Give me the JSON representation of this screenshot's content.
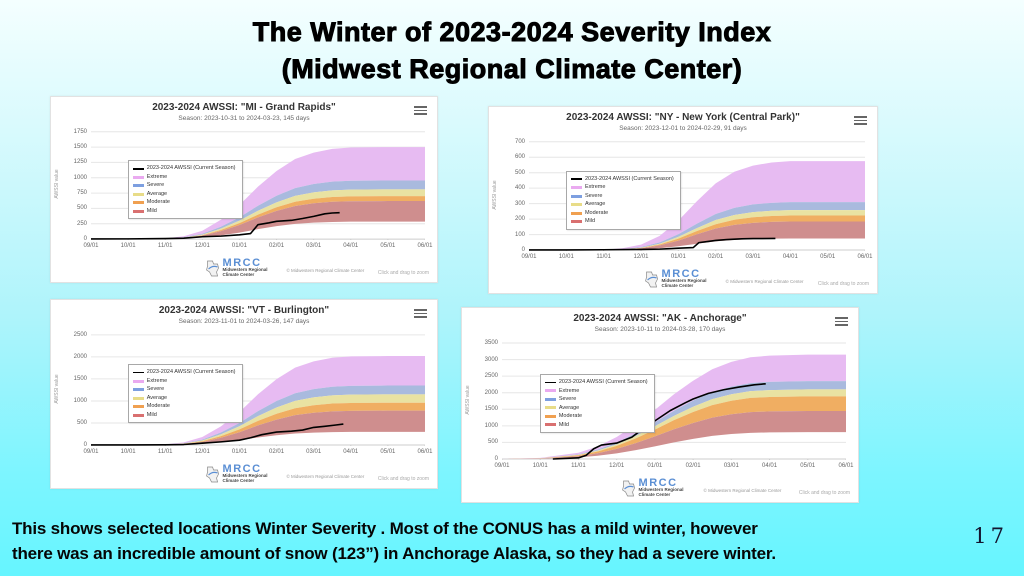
{
  "slide": {
    "title_lines": [
      "The Winter of 2023-2024 Severity Index",
      "(Midwest Regional Climate Center)"
    ],
    "caption_lines": [
      "This shows selected locations Winter Severity .  Most of the CONUS has a mild winter, however",
      "there was an incredible amount of snow (123”) in Anchorage Alaska, so they had a severe winter."
    ],
    "page_number": "17"
  },
  "colors": {
    "extreme": "#e7bbf2",
    "severe": "#a9bade",
    "average": "#e9e2a2",
    "moderate": "#f0ae62",
    "mild": "#cf8e8e",
    "current_season_line": "#000000",
    "gridline": "#e6e6e6",
    "axis": "#cccccc",
    "background_top": "#f4ffff",
    "background_bottom": "#66f5ff"
  },
  "shared": {
    "y_axis_label": "AWSSI value",
    "x_ticks": [
      "09/01",
      "10/01",
      "11/01",
      "12/01",
      "01/01",
      "02/01",
      "03/01",
      "04/01",
      "05/01",
      "06/01"
    ],
    "legend_items": [
      {
        "label": "2023-2024 AWSSI (Current Season)",
        "color": "#000000",
        "kind": "line"
      },
      {
        "label": "Extreme",
        "color": "#eaaaf0",
        "kind": "band"
      },
      {
        "label": "Severe",
        "color": "#7d9fe0",
        "kind": "band"
      },
      {
        "label": "Average",
        "color": "#e8dc88",
        "kind": "band"
      },
      {
        "label": "Moderate",
        "color": "#f0a050",
        "kind": "band"
      },
      {
        "label": "Mild",
        "color": "#d97070",
        "kind": "band"
      }
    ],
    "logo": {
      "acronym": "MRCC",
      "name_line1": "Midwestern Regional",
      "name_line2": "Climate Center"
    },
    "copyright": "© Midwestern Regional Climate Center",
    "zoom_hint": "Click and drag to zoom"
  },
  "chart_data": [
    {
      "type": "area",
      "slug": "mi-grand-rapids",
      "title": "2023-2024 AWSSI: \"MI - Grand Rapids\"",
      "subtitle": "Season: 2023-10-31 to 2024-03-23, 145 days",
      "ylim": [
        0,
        1750
      ],
      "y_ticks": [
        0,
        250,
        500,
        750,
        1000,
        1250,
        1500,
        1750
      ],
      "x_months": [
        0,
        1,
        2,
        2.5,
        3,
        3.5,
        4,
        4.5,
        5,
        5.5,
        6,
        6.5,
        7,
        8,
        9
      ],
      "bands": {
        "extreme_top": [
          0,
          0,
          12,
          45,
          135,
          315,
          555,
          855,
          1110,
          1305,
          1410,
          1470,
          1493,
          1500,
          1500
        ],
        "severe_top": [
          0,
          0,
          8,
          29,
          86,
          201,
          353,
          544,
          707,
          831,
          898,
          936,
          950,
          955,
          955
        ],
        "average_top": [
          0,
          0,
          6,
          24,
          73,
          170,
          300,
          462,
          599,
          705,
          761,
          794,
          806,
          810,
          810
        ],
        "moderate_top": [
          0,
          0,
          6,
          21,
          63,
          147,
          259,
          399,
          518,
          609,
          658,
          686,
          697,
          700,
          700
        ],
        "mild_top": [
          0,
          0,
          5,
          19,
          56,
          130,
          229,
          353,
          459,
          539,
          583,
          608,
          617,
          620,
          620
        ],
        "mild_bottom": [
          0,
          0,
          2,
          9,
          26,
          60,
          105,
          162,
          211,
          248,
          268,
          279,
          284,
          285,
          285
        ]
      },
      "current_season_line": [
        [
          0,
          2
        ],
        [
          1,
          3
        ],
        [
          2,
          8
        ],
        [
          2.5,
          14
        ],
        [
          3,
          38
        ],
        [
          3.5,
          48
        ],
        [
          4,
          70
        ],
        [
          4.3,
          90
        ],
        [
          4.5,
          235
        ],
        [
          4.8,
          265
        ],
        [
          5,
          290
        ],
        [
          5.4,
          305
        ],
        [
          5.7,
          335
        ],
        [
          6,
          370
        ],
        [
          6.3,
          412
        ],
        [
          6.5,
          425
        ],
        [
          6.7,
          430
        ]
      ]
    },
    {
      "type": "area",
      "slug": "ny-new-york-central-park",
      "title": "2023-2024 AWSSI: \"NY - New York (Central Park)\"",
      "subtitle": "Season: 2023-12-01 to 2024-02-29, 91 days",
      "ylim": [
        0,
        700
      ],
      "y_ticks": [
        0,
        100,
        200,
        300,
        400,
        500,
        600,
        700
      ],
      "x_months": [
        0,
        1,
        2,
        2.5,
        3,
        3.5,
        4,
        4.5,
        5,
        5.5,
        6,
        6.5,
        7,
        8,
        9
      ],
      "bands": {
        "extreme_top": [
          0,
          0,
          2,
          12,
          35,
          92,
          190,
          316,
          431,
          506,
          546,
          566,
          575,
          575,
          575
        ],
        "severe_top": [
          0,
          0,
          1,
          6,
          19,
          50,
          102,
          171,
          233,
          273,
          295,
          305,
          310,
          310,
          310
        ],
        "average_top": [
          0,
          0,
          1,
          5,
          15,
          41,
          85,
          142,
          194,
          227,
          245,
          254,
          258,
          258,
          258
        ],
        "moderate_top": [
          0,
          0,
          1,
          4,
          13,
          36,
          74,
          123,
          167,
          196,
          212,
          220,
          223,
          223,
          223
        ],
        "mild_top": [
          0,
          0,
          1,
          4,
          11,
          30,
          61,
          102,
          139,
          163,
          176,
          182,
          185,
          185,
          185
        ],
        "mild_bottom": [
          0,
          0,
          0,
          2,
          5,
          12,
          25,
          41,
          56,
          66,
          71,
          74,
          75,
          75,
          75
        ]
      },
      "current_season_line": [
        [
          0,
          1
        ],
        [
          1,
          1
        ],
        [
          2,
          2
        ],
        [
          3,
          4
        ],
        [
          3.5,
          6
        ],
        [
          4,
          12
        ],
        [
          4.4,
          16
        ],
        [
          4.55,
          48
        ],
        [
          4.8,
          56
        ],
        [
          5,
          62
        ],
        [
          5.3,
          68
        ],
        [
          5.7,
          73
        ],
        [
          6,
          74
        ],
        [
          6.6,
          75
        ]
      ]
    },
    {
      "type": "area",
      "slug": "vt-burlington",
      "title": "2023-2024 AWSSI: \"VT - Burlington\"",
      "subtitle": "Season: 2023-11-01 to 2024-03-26, 147 days",
      "ylim": [
        0,
        2500
      ],
      "y_ticks": [
        0,
        500,
        1000,
        1500,
        2000,
        2500
      ],
      "x_months": [
        0,
        1,
        2,
        2.5,
        3,
        3.5,
        4,
        4.5,
        5,
        5.5,
        6,
        6.5,
        7,
        8,
        9
      ],
      "bands": {
        "extreme_top": [
          0,
          0,
          16,
          61,
          182,
          424,
          747,
          1151,
          1495,
          1757,
          1899,
          1980,
          2010,
          2020,
          2020
        ],
        "severe_top": [
          0,
          0,
          11,
          41,
          122,
          284,
          500,
          770,
          999,
          1175,
          1269,
          1323,
          1343,
          1350,
          1350
        ],
        "average_top": [
          0,
          0,
          9,
          35,
          104,
          242,
          426,
          656,
          851,
          1001,
          1081,
          1127,
          1144,
          1150,
          1150
        ],
        "moderate_top": [
          0,
          0,
          8,
          29,
          86,
          202,
          355,
          547,
          710,
          835,
          902,
          941,
          955,
          960,
          960
        ],
        "mild_top": [
          0,
          0,
          6,
          23,
          70,
          164,
          289,
          445,
          577,
          679,
          733,
          764,
          776,
          780,
          780
        ],
        "mild_bottom": [
          0,
          0,
          2,
          9,
          27,
          63,
          111,
          171,
          222,
          261,
          282,
          294,
          299,
          300,
          300
        ]
      },
      "current_season_line": [
        [
          0,
          2
        ],
        [
          1,
          3
        ],
        [
          2,
          6
        ],
        [
          2.5,
          12
        ],
        [
          3,
          42
        ],
        [
          3.5,
          72
        ],
        [
          4,
          110
        ],
        [
          4.3,
          165
        ],
        [
          4.6,
          235
        ],
        [
          5,
          295
        ],
        [
          5.4,
          315
        ],
        [
          5.7,
          340
        ],
        [
          6,
          400
        ],
        [
          6.3,
          425
        ],
        [
          6.6,
          455
        ],
        [
          6.8,
          475
        ]
      ]
    },
    {
      "type": "area",
      "slug": "ak-anchorage",
      "title": "2023-2024 AWSSI: \"AK - Anchorage\"",
      "subtitle": "Season: 2023-10-11 to 2024-03-28, 170 days",
      "ylim": [
        0,
        3500
      ],
      "y_ticks": [
        0,
        500,
        1000,
        1500,
        2000,
        2500,
        3000,
        3500
      ],
      "x_months": [
        0,
        1,
        2,
        2.5,
        3,
        3.5,
        4,
        4.5,
        5,
        5.5,
        6,
        6.5,
        7,
        8,
        9
      ],
      "bands": {
        "extreme_top": [
          0,
          32,
          189,
          378,
          662,
          1040,
          1481,
          1953,
          2363,
          2709,
          2930,
          3071,
          3119,
          3150,
          3150
        ],
        "severe_top": [
          0,
          24,
          141,
          282,
          494,
          776,
          1105,
          1457,
          1763,
          2021,
          2186,
          2291,
          2327,
          2350,
          2350
        ],
        "average_top": [
          0,
          21,
          126,
          252,
          441,
          693,
          987,
          1302,
          1575,
          1806,
          1953,
          2048,
          2079,
          2100,
          2100
        ],
        "moderate_top": [
          0,
          19,
          113,
          227,
          397,
          624,
          888,
          1172,
          1418,
          1625,
          1758,
          1843,
          1871,
          1890,
          1890
        ],
        "mild_top": [
          0,
          15,
          87,
          174,
          305,
          479,
          682,
          899,
          1088,
          1247,
          1349,
          1414,
          1436,
          1450,
          1450
        ],
        "mild_bottom": [
          0,
          8,
          49,
          97,
          170,
          267,
          381,
          502,
          608,
          697,
          753,
          790,
          802,
          810,
          810
        ]
      },
      "current_season_line": [
        [
          1.33,
          0
        ],
        [
          2,
          35
        ],
        [
          2.2,
          110
        ],
        [
          2.4,
          310
        ],
        [
          2.6,
          420
        ],
        [
          3,
          480
        ],
        [
          3.4,
          660
        ],
        [
          3.8,
          1010
        ],
        [
          4,
          1150
        ],
        [
          4.4,
          1460
        ],
        [
          4.8,
          1700
        ],
        [
          5,
          1810
        ],
        [
          5.4,
          1980
        ],
        [
          5.8,
          2090
        ],
        [
          6.2,
          2170
        ],
        [
          6.6,
          2240
        ],
        [
          6.9,
          2270
        ]
      ]
    }
  ]
}
